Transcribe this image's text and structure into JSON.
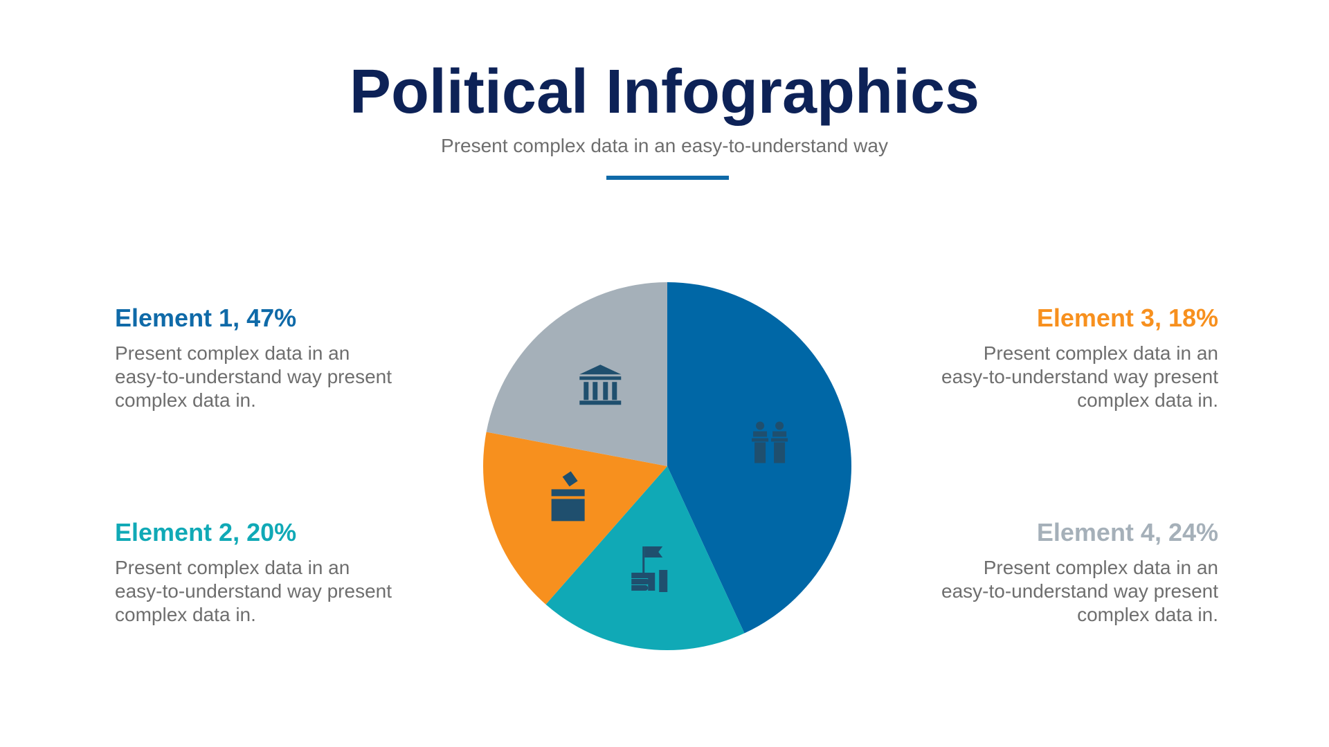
{
  "header": {
    "title": "Political Infographics",
    "subtitle": "Present complex data in an easy-to-understand way"
  },
  "colors": {
    "title": "#0d2257",
    "divider": "#0f6aa8",
    "text": "#6e6e6e"
  },
  "elements": [
    {
      "heading": "Element 1, 47%",
      "color": "#0f6aa8",
      "description": [
        "Present complex data in an",
        "easy-to-understand way present",
        "complex data in."
      ]
    },
    {
      "heading": "Element 2, 20%",
      "color": "#10a9b6",
      "description": [
        "Present complex data in an",
        "easy-to-understand way present",
        "complex data in."
      ]
    },
    {
      "heading": "Element 3, 18%",
      "color": "#f7901e",
      "description": [
        "Present complex data in an",
        "easy-to-understand way present",
        "complex data in."
      ]
    },
    {
      "heading": "Element 4, 24%",
      "color": "#a5b0b9",
      "description": [
        "Present complex data in an",
        "easy-to-understand way present",
        "complex data in."
      ]
    }
  ],
  "chart_data": {
    "type": "pie",
    "start_angle_deg": 0,
    "direction": "clockwise",
    "slices": [
      {
        "label": "Element 1",
        "value": 47,
        "color": "#0067a6",
        "icon": "podium-speakers-icon"
      },
      {
        "label": "Element 2",
        "value": 20,
        "color": "#10a9b6",
        "icon": "hand-flag-icon"
      },
      {
        "label": "Element 3",
        "value": 18,
        "color": "#f7901e",
        "icon": "ballot-box-icon"
      },
      {
        "label": "Element 4",
        "value": 24,
        "color": "#a5b0b9",
        "icon": "government-building-icon"
      }
    ],
    "icon_color": "#1f4f6e"
  }
}
